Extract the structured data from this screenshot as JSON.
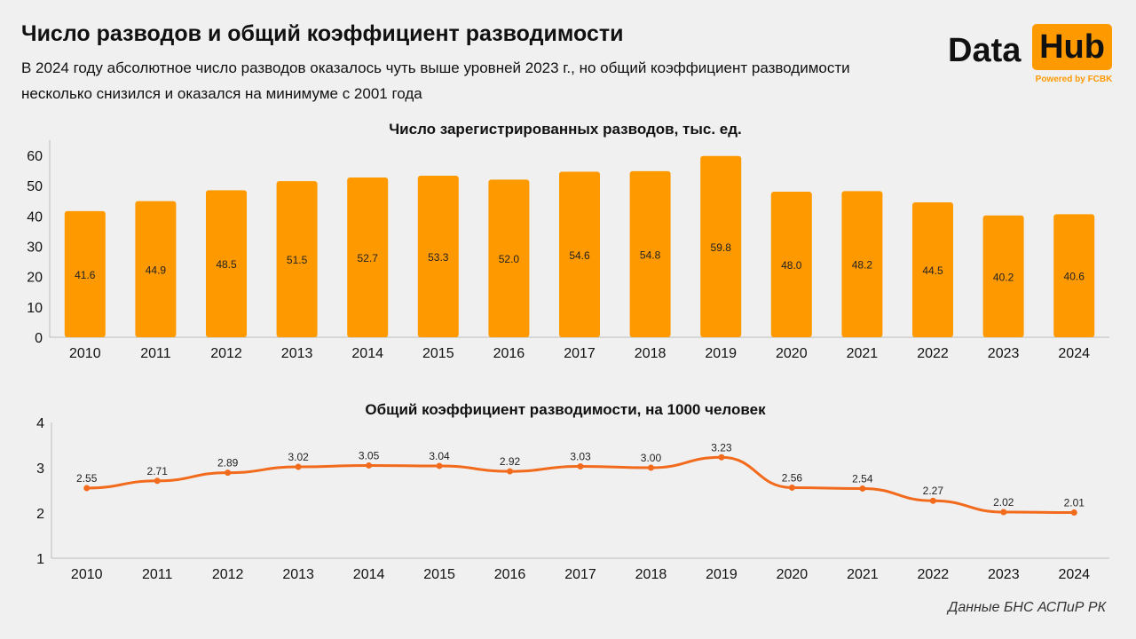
{
  "header": {
    "title": "Число разводов и общий коэффициент разводимости",
    "subtitle": "В 2024 году абсолютное число разводов оказалось чуть выше уровней 2023 г., но общий коэффициент разводимости  несколько снизился и оказался на минимуме с 2001 года"
  },
  "logo": {
    "data": "Data",
    "hub": "Hub",
    "powered": "Powered by FCBK",
    "accent_color": "#ff9900"
  },
  "source": "Данные БНС АСПиР РК",
  "chart_data": [
    {
      "type": "bar",
      "title": "Число зарегистрированных разводов, тыс. ед.",
      "categories": [
        "2010",
        "2011",
        "2012",
        "2013",
        "2014",
        "2015",
        "2016",
        "2017",
        "2018",
        "2019",
        "2020",
        "2021",
        "2022",
        "2023",
        "2024"
      ],
      "values": [
        41.6,
        44.9,
        48.5,
        51.5,
        52.7,
        53.3,
        52.0,
        54.6,
        54.8,
        59.8,
        48.0,
        48.2,
        44.5,
        40.2,
        40.6
      ],
      "value_labels": [
        "41.6",
        "44.9",
        "48.5",
        "51.5",
        "52.7",
        "53.3",
        "52.0",
        "54.6",
        "54.8",
        "59.8",
        "48.0",
        "48.2",
        "44.5",
        "40.2",
        "40.6"
      ],
      "ylim": [
        0,
        65
      ],
      "yticks": [
        "0",
        "10",
        "20",
        "30",
        "40",
        "50",
        "60"
      ],
      "xlabel": "",
      "ylabel": "",
      "grid": false,
      "color": "#ff9900"
    },
    {
      "type": "line",
      "title": "Общий коэффициент разводимости, на 1000 человек",
      "categories": [
        "2010",
        "2011",
        "2012",
        "2013",
        "2014",
        "2015",
        "2016",
        "2017",
        "2018",
        "2019",
        "2020",
        "2021",
        "2022",
        "2023",
        "2024"
      ],
      "values": [
        2.55,
        2.71,
        2.89,
        3.02,
        3.05,
        3.04,
        2.92,
        3.03,
        3.0,
        3.23,
        2.56,
        2.54,
        2.27,
        2.02,
        2.01
      ],
      "value_labels": [
        "2.55",
        "2.71",
        "2.89",
        "3.02",
        "3.05",
        "3.04",
        "2.92",
        "3.03",
        "3.00",
        "3.23",
        "2.56",
        "2.54",
        "2.27",
        "2.02",
        "2.01"
      ],
      "ylim": [
        1,
        4
      ],
      "yticks": [
        "1",
        "2",
        "3",
        "4"
      ],
      "xlabel": "",
      "ylabel": "",
      "grid": false,
      "color": "#f26a1b"
    }
  ]
}
